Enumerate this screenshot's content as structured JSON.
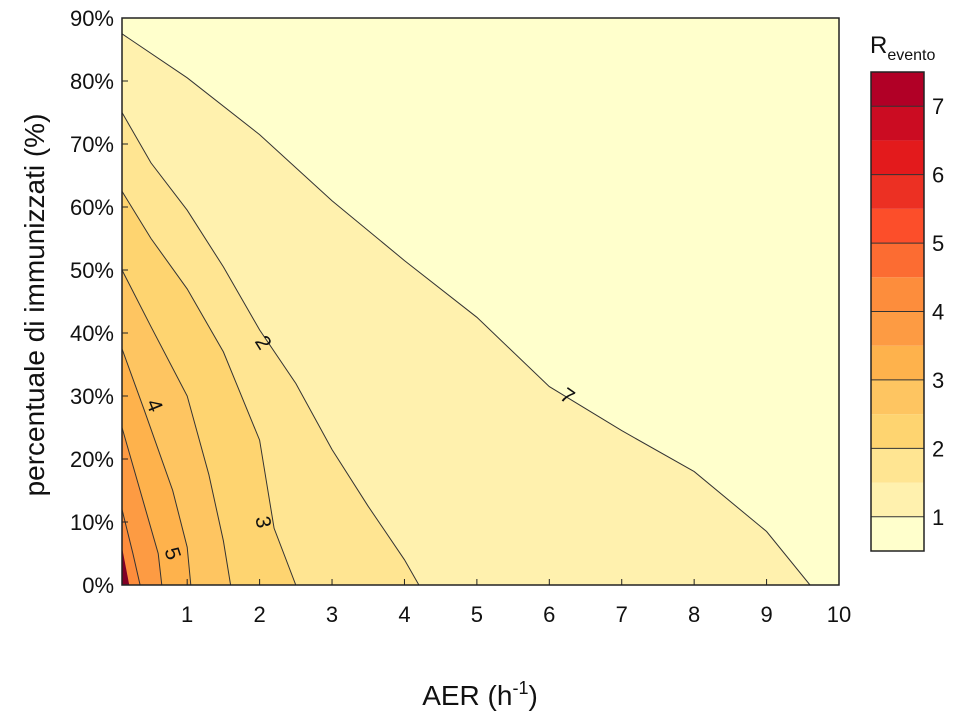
{
  "chart_data": {
    "type": "contour",
    "title": "",
    "xlabel": "AER (h",
    "xlabel_superscript": "-1",
    "xlabel_suffix": ")",
    "ylabel": "percentuale di immunizzati (%)",
    "xlim": [
      0.1,
      10
    ],
    "ylim": [
      0,
      90
    ],
    "x_ticks": [
      1,
      2,
      3,
      4,
      5,
      6,
      7,
      8,
      9,
      10
    ],
    "x_tick_labels": [
      "1",
      "2",
      "3",
      "4",
      "5",
      "6",
      "7",
      "8",
      "9",
      "10"
    ],
    "y_ticks": [
      0,
      10,
      20,
      30,
      40,
      50,
      60,
      70,
      80,
      90
    ],
    "y_tick_labels": [
      "0%",
      "10%",
      "20%",
      "30%",
      "40%",
      "50%",
      "60%",
      "70%",
      "80%",
      "90%"
    ],
    "colorbar": {
      "title": "R",
      "title_subscript": "evento",
      "range": [
        0.5,
        7.5
      ],
      "levels": [
        0.5,
        1,
        1.5,
        2,
        2.5,
        3,
        3.5,
        4,
        4.5,
        5,
        5.5,
        6,
        6.5,
        7,
        7.5
      ],
      "band_colors": [
        "#ffffcc",
        "#fff1ae",
        "#ffe592",
        "#fed470",
        "#fec561",
        "#feb24c",
        "#fd9b43",
        "#fd8d3c",
        "#fc6c32",
        "#fc4e2a",
        "#ec3023",
        "#e31a1c",
        "#cb0c22",
        "#b10026",
        "#800026"
      ],
      "ticks": [
        1,
        2,
        3,
        4,
        5,
        6,
        7
      ],
      "tick_labels": [
        "1",
        "2",
        "3",
        "4",
        "5",
        "6",
        "7"
      ]
    },
    "contours": [
      {
        "level": 1,
        "points": [
          [
            0.1,
            87.5
          ],
          [
            1.0,
            80.5
          ],
          [
            2.0,
            71.5
          ],
          [
            3.0,
            61.0
          ],
          [
            4.0,
            51.5
          ],
          [
            5.0,
            42.5
          ],
          [
            6.0,
            31.5
          ],
          [
            7.0,
            24.5
          ],
          [
            8.0,
            18.0
          ],
          [
            9.0,
            8.5
          ],
          [
            9.6,
            0
          ]
        ]
      },
      {
        "level": 1.5,
        "points": [
          [
            0.1,
            75.0
          ],
          [
            0.5,
            67.0
          ],
          [
            1.0,
            59.5
          ],
          [
            1.5,
            50.5
          ],
          [
            2.0,
            40.5
          ],
          [
            2.5,
            32.0
          ],
          [
            3.0,
            21.5
          ],
          [
            3.5,
            12.5
          ],
          [
            4.0,
            4.0
          ],
          [
            4.2,
            0
          ]
        ]
      },
      {
        "level": 2,
        "points": [
          [
            0.1,
            62.5
          ],
          [
            0.5,
            55.0
          ],
          [
            1.0,
            47.0
          ],
          [
            1.5,
            37.0
          ],
          [
            2.0,
            23.0
          ],
          [
            2.2,
            9.0
          ],
          [
            2.5,
            0
          ]
        ]
      },
      {
        "level": 2.5,
        "points": [
          [
            0.1,
            50.0
          ],
          [
            0.5,
            41.0
          ],
          [
            1.0,
            30.0
          ],
          [
            1.3,
            17.5
          ],
          [
            1.5,
            7.0
          ],
          [
            1.6,
            0
          ]
        ]
      },
      {
        "level": 3,
        "points": [
          [
            0.1,
            37.5
          ],
          [
            0.4,
            28.0
          ],
          [
            0.8,
            15.0
          ],
          [
            1.0,
            6.0
          ],
          [
            1.05,
            0
          ]
        ]
      },
      {
        "level": 3.5,
        "points": [
          [
            0.1,
            25.0
          ],
          [
            0.35,
            15.0
          ],
          [
            0.6,
            5.0
          ],
          [
            0.65,
            0
          ]
        ]
      },
      {
        "level": 4,
        "points": [
          [
            0.1,
            12.0
          ],
          [
            0.25,
            5.0
          ],
          [
            0.35,
            0
          ]
        ]
      }
    ],
    "contour_labels": [
      {
        "text": "2",
        "x": 2.05,
        "y": 38.5,
        "angle": 58
      },
      {
        "text": "7",
        "x": 6.25,
        "y": 30.0,
        "angle": 35
      },
      {
        "text": "4",
        "x": 0.55,
        "y": 28.5,
        "angle": 68
      },
      {
        "text": "3",
        "x": 2.05,
        "y": 10.0,
        "angle": 80
      },
      {
        "text": "5",
        "x": 0.8,
        "y": 5.0,
        "angle": 72
      }
    ]
  }
}
